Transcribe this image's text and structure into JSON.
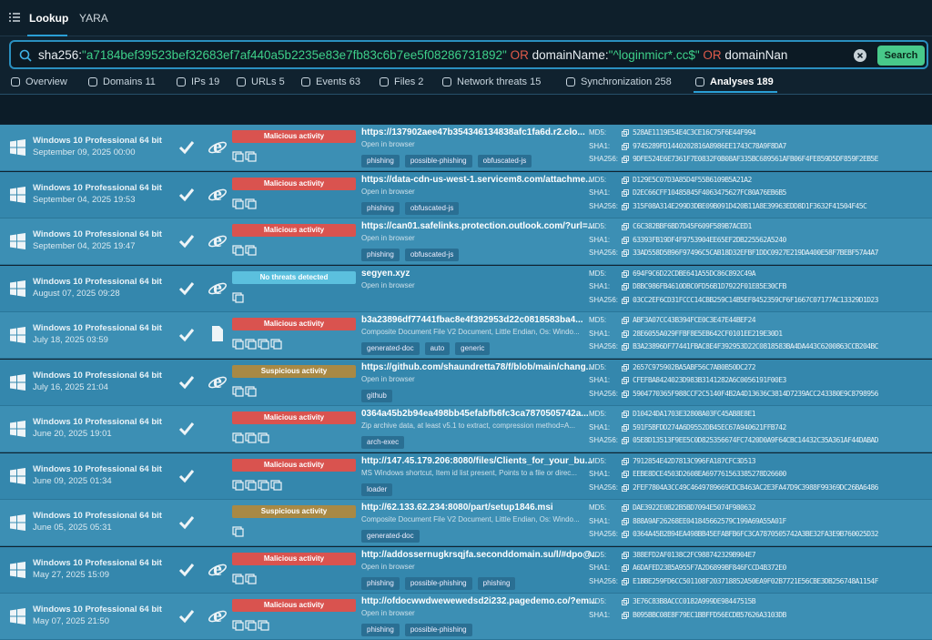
{
  "header": {
    "tabs": [
      "Lookup",
      "YARA"
    ]
  },
  "search": {
    "query_parts": [
      "sha256:",
      "\"a7184bef39523bef32683ef7af440a5b2235e83e7fb83c6b7ee5f08286731892\"",
      " OR ",
      "domainName:",
      "\"^loginmicr*.cc$\"",
      " OR ",
      "domainNan"
    ],
    "button": "Search"
  },
  "nav": [
    {
      "label": "Overview"
    },
    {
      "label": "Domains",
      "count": 11
    },
    {
      "label": "IPs",
      "count": 19
    },
    {
      "label": "URLs",
      "count": 5
    },
    {
      "label": "Events",
      "count": 63
    },
    {
      "label": "Files",
      "count": 2
    },
    {
      "label": "Network threats",
      "count": 15
    },
    {
      "label": "Synchronization",
      "count": 258
    },
    {
      "label": "Analyses",
      "count": 189
    }
  ],
  "hash_labels": [
    "MD5:",
    "SHA1:",
    "SHA256:"
  ],
  "rows": [
    {
      "os": "Windows 10 Professional 64 bit",
      "date": "September 09, 2025 00:00",
      "verdict": "Malicious activity",
      "url": "https://137902aee47b354346134838afc1fa6d.r2.clo...",
      "desc": "Open in browser",
      "tags": [
        "phishing",
        "possible-phishing",
        "obfuscated-js"
      ],
      "md5": "528AE1119E54E4C3CE16C75F6E44F994",
      "sha1": "9745289FD1440202816A8986EE1743C78A9F8DA7",
      "sha256": "9DFE524E6E7361F7E0832F0B08AF335BC689561AFB06F4FE859D5DF859F2EB5E"
    },
    {
      "os": "Windows 10 Professional 64 bit",
      "date": "September 04, 2025 19:53",
      "verdict": "Malicious activity",
      "url": "https://data-cdn-us-west-1.servicem8.com/attachme...",
      "desc": "Open in browser",
      "tags": [
        "phishing",
        "obfuscated-js"
      ],
      "md5": "D129E5C07D3A85D4F55B6109B5A21A2",
      "sha1": "D2EC66CFF10485845F4063475627FC80A76EB6B5",
      "sha256": "315F08A314E299D3DBE09B091D420B11A8E39963EDD8D1F3632F41504F45C"
    },
    {
      "os": "Windows 10 Professional 64 bit",
      "date": "September 04, 2025 19:47",
      "verdict": "Malicious activity",
      "url": "https://can01.safelinks.protection.outlook.com/?url=...",
      "desc": "Open in browser",
      "tags": [
        "phishing",
        "obfuscated-js"
      ],
      "md5": "C6C382BBF6BD7D45F609F589B7ACED1",
      "sha1": "63393FB19DF4F9753904EE65EF2DB225562A5240",
      "sha256": "33AD558D5B96F97496C5CAB18D32EFBF1DDC0927E219DA400E58F7BEBF57A4A7"
    },
    {
      "os": "Windows 10 Professional 64 bit",
      "date": "August 07, 2025 09:28",
      "verdict": "No threats detected",
      "url": "segyen.xyz",
      "desc": "Open in browser",
      "tags": [],
      "md5": "694F9C6D22CDBE641A55DC86C892C49A",
      "sha1": "D8BC986FB4610DBC0FD56B1D7922F01E85E30CFB",
      "sha256": "03CC2EF6CD31FCCC14CBB259C14B5EF8452359CF6F1667C07177AC13329D1D23"
    },
    {
      "os": "Windows 10 Professional 64 bit",
      "date": "July 18, 2025 03:59",
      "verdict": "Malicious activity",
      "url": "b3a23896df77441fbac8e4f392953d22c0818583ba4...",
      "desc": "Composite Document File V2 Document, Little Endian, Os: Windo...",
      "tags": [
        "generated-doc",
        "auto",
        "generic"
      ],
      "md5": "ABF3A07CC43B394FCE0C3E47E44BEF24",
      "sha1": "28E6055A029FFBF8E5EB642CF0101EE219E30D1",
      "sha256": "B3A23896DF77441FBAC8E4F392953D22C0818583BA4DA443C6200863CCB204BC"
    },
    {
      "os": "Windows 10 Professional 64 bit",
      "date": "July 16, 2025 21:04",
      "verdict": "Suspicious activity",
      "url": "https://github.com/shaundretta78/f/blob/main/chang...",
      "desc": "Open in browser",
      "tags": [
        "github"
      ],
      "md5": "2657C975902BA5ABF56C7AB0B50DC272",
      "sha1": "CFEFBA8424023D983B3141282A6C0056191F00E3",
      "sha256": "5904770365F988CCF2C5140F4B2A4D13636C3814D7239ACC243380E9C8798956"
    },
    {
      "os": "Windows 10 Professional 64 bit",
      "date": "June 20, 2025 19:01",
      "verdict": "Malicious activity",
      "url": "0364a45b2b94ea498bb45efabfb6fc3ca7870505742a...",
      "desc": "Zip archive data, at least v5.1 to extract, compression method=A...",
      "tags": [
        "arch-exec"
      ],
      "md5": "D10424DA1703E32808A03FC45AB8E8E1",
      "sha1": "591F5BFDD274A6D9552DB45EC67A940621FFB742",
      "sha256": "05E8D13513F9EE5C0D825356674FC7420D0A9F64CBC14432C35A361AF44DABAD"
    },
    {
      "os": "Windows 10 Professional 64 bit",
      "date": "June 09, 2025 01:34",
      "verdict": "Malicious activity",
      "url": "http://147.45.179.206:8080/files/Clients_for_your_bu...",
      "desc": "MS Windows shortcut, Item id list present, Points to a file or direc...",
      "tags": [
        "loader"
      ],
      "md5": "7912854E42D7813C996FA187CFC3D513",
      "sha1": "EEBE8DCE4503D2608EA697761563385278D26600",
      "sha256": "2FEF7804A3CC49C4649789669CDCB463AC2E3FA47D9C3988F99369DC26BA6486"
    },
    {
      "os": "Windows 10 Professional 64 bit",
      "date": "June 05, 2025 05:31",
      "verdict": "Suspicious activity",
      "url": "http://62.133.62.234:8080/part/setup1846.msi",
      "desc": "Composite Document File V2 Document, Little Endian, Os: Windo...",
      "tags": [
        "generated-doc"
      ],
      "md5": "DAE3922E0B22B5BD7094E5074F980632",
      "sha1": "888A9AF26268EE041845662579C199A69A55A01F",
      "sha256": "0364A45B2B94EA498BB45EFABFB6FC3CA7870505742A3BE32FA3E9B760025D32"
    },
    {
      "os": "Windows 10 Professional 64 bit",
      "date": "May 27, 2025 15:09",
      "verdict": "Malicious activity",
      "url": "http://addossernugkrsqjfa.seconddomain.su/l/#dpo@...",
      "desc": "Open in browser",
      "tags": [
        "phishing",
        "possible-phishing",
        "phishing"
      ],
      "md5": "388EFD2AF0138C2FC988742329B904E7",
      "sha1": "A6DAFED23B5A955F7A2D6899BF846FCCD4B372E0",
      "sha256": "E1BBE259FD6CC501108F203718852A50EA9F02B7721E56CBE3DB256748A1154F"
    },
    {
      "os": "Windows 10 Professional 64 bit",
      "date": "May 07, 2025 21:50",
      "verdict": "Malicious activity",
      "url": "http://ofdocwwdwewewedsd2i232.pagedemo.co/?em...",
      "desc": "Open in browser",
      "tags": [
        "phishing",
        "possible-phishing"
      ],
      "md5": "3E76C83B8ACCC0182A999DE98447515B",
      "sha1": "B095BBC08E8F79EC1BBFFD56ECDB57626A3103DB"
    }
  ]
}
